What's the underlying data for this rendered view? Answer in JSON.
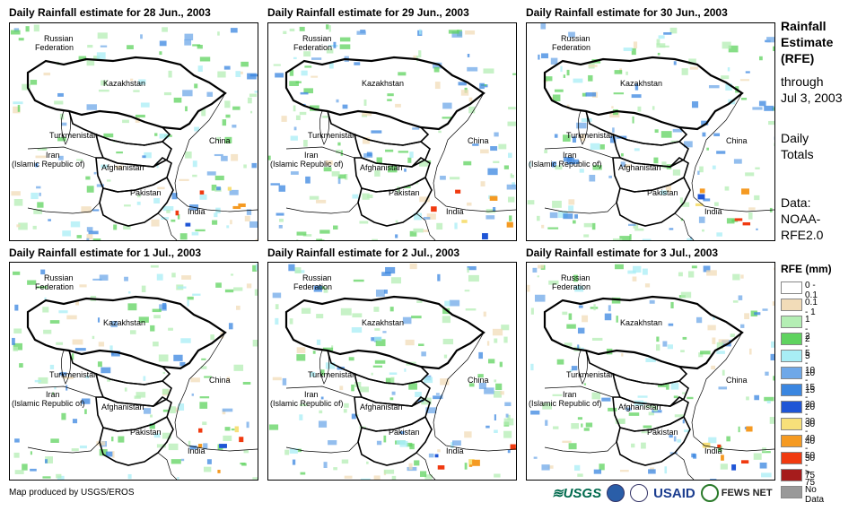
{
  "panels": [
    {
      "title": "Daily Rainfall estimate for 28 Jun., 2003"
    },
    {
      "title": "Daily Rainfall estimate for 29 Jun., 2003"
    },
    {
      "title": "Daily Rainfall estimate for 30 Jun., 2003"
    },
    {
      "title": "Daily Rainfall estimate for 1 Jul., 2003"
    },
    {
      "title": "Daily Rainfall estimate for 2 Jul., 2003"
    },
    {
      "title": "Daily Rainfall estimate for 3 Jul., 2003"
    }
  ],
  "map_labels": {
    "russia_1": "Russian",
    "russia_2": "Federation",
    "kazakhstan": "Kazakhstan",
    "turkmenistan": "Turkmenistan",
    "iran_1": "Iran",
    "iran_2": "(Islamic Republic of)",
    "afghanistan": "Afghanistan",
    "pakistan": "Pakistan",
    "china": "China",
    "india": "India"
  },
  "side": {
    "title_1": "Rainfall",
    "title_2": "Estimate",
    "title_3": "(RFE)",
    "through_1": "through",
    "through_2": "Jul 3, 2003",
    "daily_1": "Daily",
    "daily_2": "Totals",
    "data_1": "Data:",
    "data_2": "NOAA-",
    "data_3": "RFE2.0"
  },
  "legend": {
    "title": "RFE (mm)",
    "items": [
      {
        "label": "0 - 0.1",
        "color": "#ffffff"
      },
      {
        "label": "0.1 - 1",
        "color": "#f2dcb8"
      },
      {
        "label": "1 - 2",
        "color": "#b4eeb4"
      },
      {
        "label": "2 - 5",
        "color": "#5fd35f"
      },
      {
        "label": "5 - 10",
        "color": "#a8eef5"
      },
      {
        "label": "10 - 15",
        "color": "#6fa8e8"
      },
      {
        "label": "15 - 20",
        "color": "#3a86e0"
      },
      {
        "label": "20 - 30",
        "color": "#1f55d6"
      },
      {
        "label": "30 - 40",
        "color": "#f7e07a"
      },
      {
        "label": "40 - 50",
        "color": "#f59a22"
      },
      {
        "label": "50 - 75",
        "color": "#f03a10"
      },
      {
        "label": "> 75",
        "color": "#a61c1c"
      },
      {
        "label": "No Data",
        "color": "#999999"
      }
    ]
  },
  "credit": "Map produced by USGS/EROS",
  "logos": {
    "usgs": "≋USGS",
    "usaid": "USAID",
    "fews": "FEWS NET"
  }
}
